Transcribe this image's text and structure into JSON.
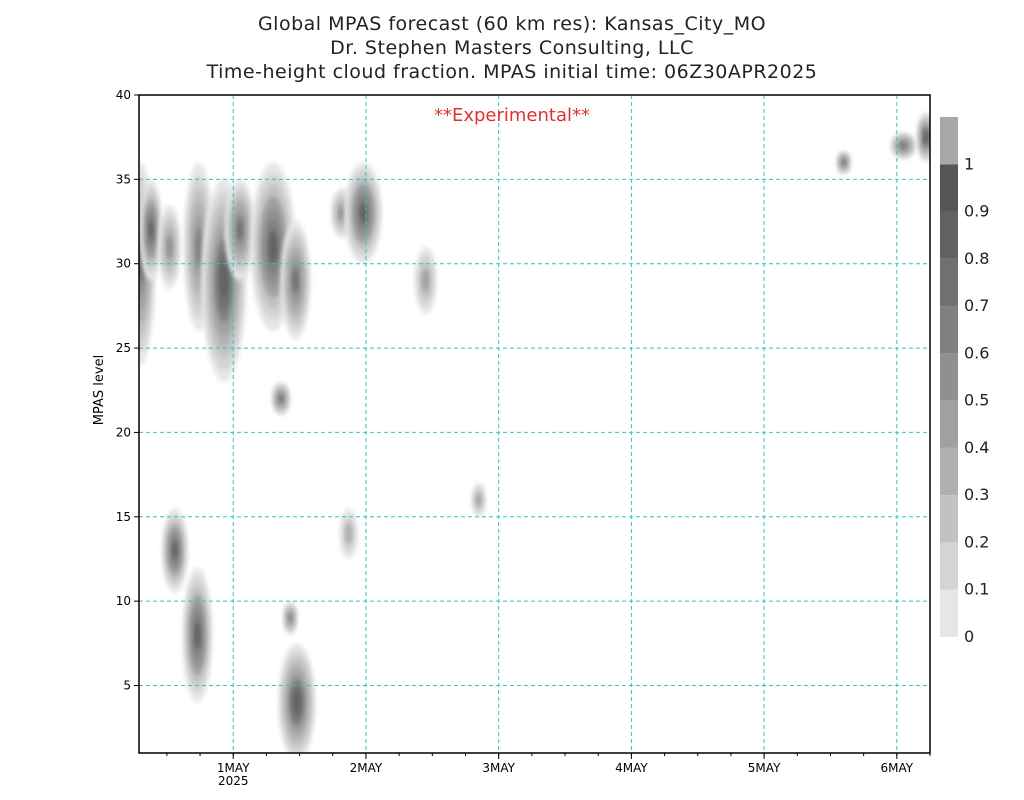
{
  "header": {
    "line1": "Global MPAS forecast (60 km res): Kansas_City_MO",
    "line2": "Dr. Stephen Masters Consulting, LLC",
    "line3": "Time-height cloud fraction.    MPAS initial time: 06Z30APR2025"
  },
  "watermark": "**Experimental**",
  "chart_data": {
    "type": "heatmap",
    "title": "",
    "xlabel": "",
    "ylabel": "MPAS level",
    "x_range_days_from_30APR": [
      0.29,
      6.25
    ],
    "ylim": [
      1,
      40
    ],
    "yticks": [
      5,
      10,
      15,
      20,
      25,
      30,
      35,
      40
    ],
    "xticks": [
      {
        "day": 1,
        "label": "1MAY",
        "sublabel": "2025"
      },
      {
        "day": 2,
        "label": "2MAY",
        "sublabel": ""
      },
      {
        "day": 3,
        "label": "3MAY",
        "sublabel": ""
      },
      {
        "day": 4,
        "label": "4MAY",
        "sublabel": ""
      },
      {
        "day": 5,
        "label": "5MAY",
        "sublabel": ""
      },
      {
        "day": 6,
        "label": "6MAY",
        "sublabel": ""
      }
    ],
    "grid": true,
    "colorbar": {
      "levels": [
        0,
        0.1,
        0.2,
        0.3,
        0.4,
        0.5,
        0.6,
        0.7,
        0.8,
        0.9,
        1
      ],
      "colors": [
        "#e6e6e6",
        "#d4d4d4",
        "#c2c2c2",
        "#b0b0b0",
        "#a0a0a0",
        "#909090",
        "#808080",
        "#707070",
        "#626262",
        "#555555",
        "#a8a8a8"
      ]
    },
    "cloud_blobs": [
      {
        "t": 0.3,
        "lev": 30,
        "dt": 0.08,
        "dl": 6,
        "v": 0.7
      },
      {
        "t": 0.38,
        "lev": 32,
        "dt": 0.06,
        "dl": 3,
        "v": 0.8
      },
      {
        "t": 0.52,
        "lev": 31,
        "dt": 0.06,
        "dl": 2.5,
        "v": 0.5
      },
      {
        "t": 0.74,
        "lev": 31,
        "dt": 0.08,
        "dl": 5,
        "v": 0.6
      },
      {
        "t": 0.93,
        "lev": 29,
        "dt": 0.12,
        "dl": 6,
        "v": 0.85
      },
      {
        "t": 1.05,
        "lev": 32,
        "dt": 0.08,
        "dl": 3,
        "v": 0.7
      },
      {
        "t": 1.3,
        "lev": 31,
        "dt": 0.12,
        "dl": 5,
        "v": 0.8
      },
      {
        "t": 1.47,
        "lev": 29,
        "dt": 0.08,
        "dl": 3.5,
        "v": 0.7
      },
      {
        "t": 1.36,
        "lev": 22,
        "dt": 0.05,
        "dl": 1,
        "v": 0.7
      },
      {
        "t": 1.82,
        "lev": 33,
        "dt": 0.06,
        "dl": 1.5,
        "v": 0.5
      },
      {
        "t": 1.98,
        "lev": 33,
        "dt": 0.1,
        "dl": 3,
        "v": 0.8
      },
      {
        "t": 2.45,
        "lev": 29,
        "dt": 0.06,
        "dl": 2,
        "v": 0.4
      },
      {
        "t": 0.56,
        "lev": 13,
        "dt": 0.07,
        "dl": 2.5,
        "v": 0.8
      },
      {
        "t": 0.73,
        "lev": 8,
        "dt": 0.08,
        "dl": 4,
        "v": 0.8
      },
      {
        "t": 1.43,
        "lev": 9,
        "dt": 0.04,
        "dl": 1,
        "v": 0.6
      },
      {
        "t": 1.48,
        "lev": 4,
        "dt": 0.1,
        "dl": 3.5,
        "v": 0.85
      },
      {
        "t": 1.87,
        "lev": 14,
        "dt": 0.05,
        "dl": 1.5,
        "v": 0.3
      },
      {
        "t": 2.85,
        "lev": 16,
        "dt": 0.04,
        "dl": 1,
        "v": 0.4
      },
      {
        "t": 5.6,
        "lev": 36,
        "dt": 0.04,
        "dl": 0.7,
        "v": 0.7
      },
      {
        "t": 6.05,
        "lev": 37,
        "dt": 0.07,
        "dl": 0.8,
        "v": 0.7
      },
      {
        "t": 6.22,
        "lev": 37.5,
        "dt": 0.05,
        "dl": 1.5,
        "v": 0.85
      }
    ]
  }
}
